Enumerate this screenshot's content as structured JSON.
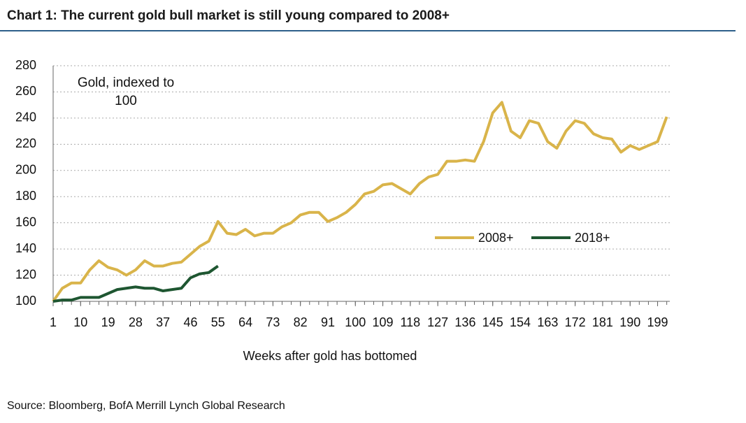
{
  "chart_data": {
    "type": "line",
    "title": "Chart 1: The current gold bull market is still young compared to 2008+",
    "annotation": "Gold, indexed to 100",
    "x_label": "Weeks after gold has bottomed",
    "source": "Source: Bloomberg, BofA Merrill Lynch Global Research",
    "x": [
      1,
      4,
      7,
      10,
      13,
      16,
      19,
      22,
      25,
      28,
      31,
      34,
      37,
      40,
      43,
      46,
      49,
      52,
      55,
      58,
      61,
      64,
      67,
      70,
      73,
      76,
      79,
      82,
      85,
      88,
      91,
      94,
      97,
      100,
      103,
      106,
      109,
      112,
      115,
      118,
      121,
      124,
      127,
      130,
      133,
      136,
      139,
      142,
      145,
      148,
      151,
      154,
      157,
      160,
      163,
      166,
      169,
      172,
      175,
      178,
      181,
      184,
      187,
      190,
      193,
      196,
      199,
      202
    ],
    "series": [
      {
        "name": "2008+",
        "color": "#d9b44a",
        "values": [
          100,
          110,
          114,
          114,
          124,
          131,
          126,
          124,
          120,
          124,
          131,
          127,
          127,
          129,
          130,
          136,
          142,
          146,
          161,
          152,
          151,
          155,
          150,
          152,
          152,
          157,
          160,
          166,
          168,
          168,
          161,
          164,
          168,
          174,
          182,
          184,
          189,
          190,
          186,
          182,
          190,
          195,
          197,
          207,
          207,
          208,
          207,
          222,
          244,
          252,
          230,
          225,
          238,
          236,
          222,
          217,
          230,
          238,
          236,
          228,
          225,
          224,
          214,
          219,
          216,
          219,
          222,
          241
        ]
      },
      {
        "name": "2018+",
        "color": "#1e5631",
        "values": [
          100,
          101,
          101,
          103,
          103,
          103,
          106,
          109,
          110,
          111,
          110,
          110,
          108,
          109,
          110,
          118,
          121,
          122,
          127,
          null,
          null,
          null,
          null,
          null,
          null,
          null,
          null,
          null,
          null,
          null,
          null,
          null,
          null,
          null,
          null,
          null,
          null,
          null,
          null,
          null,
          null,
          null,
          null,
          null,
          null,
          null,
          null,
          null,
          null,
          null,
          null,
          null,
          null,
          null,
          null,
          null,
          null,
          null,
          null,
          null,
          null,
          null,
          null,
          null,
          null,
          null,
          null,
          null
        ]
      }
    ],
    "xlim": [
      1,
      203
    ],
    "xticks": [
      1,
      10,
      19,
      28,
      37,
      46,
      55,
      64,
      73,
      82,
      91,
      100,
      109,
      118,
      127,
      136,
      145,
      154,
      163,
      172,
      181,
      190,
      199
    ],
    "ylim": [
      100,
      280
    ],
    "yticks": [
      100,
      120,
      140,
      160,
      180,
      200,
      220,
      240,
      260,
      280
    ],
    "grid": true,
    "legend": "right"
  }
}
